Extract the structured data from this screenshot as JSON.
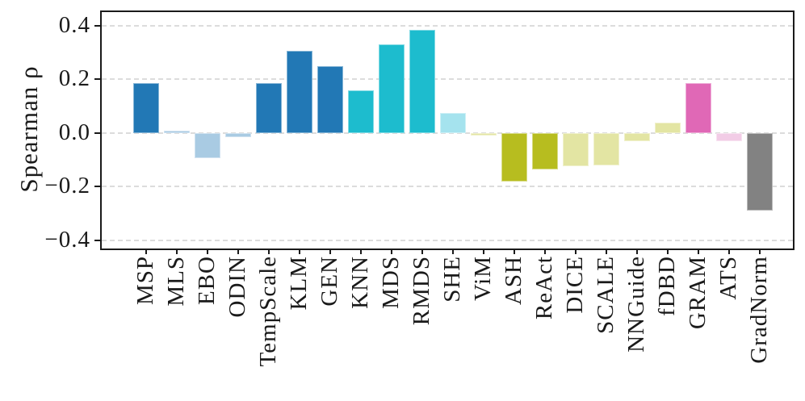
{
  "chart_data": {
    "type": "bar",
    "title": "",
    "xlabel": "",
    "ylabel": "Spearman ρ",
    "categories": [
      "MSP",
      "MLS",
      "EBO",
      "ODIN",
      "TempScale",
      "KLM",
      "GEN",
      "KNN",
      "MDS",
      "RMDS",
      "SHE",
      "ViM",
      "ASH",
      "ReAct",
      "DICE",
      "SCALE",
      "NNGuide",
      "fDBD",
      "GRAM",
      "ATS",
      "GradNorm"
    ],
    "values": [
      0.185,
      0.01,
      -0.095,
      -0.015,
      0.185,
      0.305,
      0.25,
      0.16,
      0.33,
      0.385,
      0.075,
      -0.01,
      -0.18,
      -0.135,
      -0.125,
      -0.12,
      -0.03,
      0.04,
      0.185,
      -0.03,
      -0.29
    ],
    "bar_colors": [
      "#2278b5",
      "#a9cbe3",
      "#a9cbe3",
      "#a9cbe3",
      "#2278b5",
      "#2278b5",
      "#2278b5",
      "#1dbcce",
      "#1dbcce",
      "#1dbcce",
      "#a5e3ee",
      "#e3e5a3",
      "#b7bd1f",
      "#b7bd1f",
      "#e3e5a3",
      "#e3e5a3",
      "#e3e5a3",
      "#e3e5a3",
      "#e068b6",
      "#f2cce6",
      "#828282"
    ],
    "ytick_values": [
      0.4,
      0.2,
      0.0,
      -0.2,
      -0.4
    ],
    "ytick_labels": [
      "0.4",
      "0.2",
      "0.0",
      "−0.2",
      "−0.4"
    ],
    "ylim": [
      -0.43,
      0.45
    ],
    "grid": {
      "axis": "y",
      "style": "dashed",
      "color": "#dcdcdc"
    },
    "axis_color": "#1a1a1a",
    "background_color": "#ffffff",
    "legend": null
  }
}
